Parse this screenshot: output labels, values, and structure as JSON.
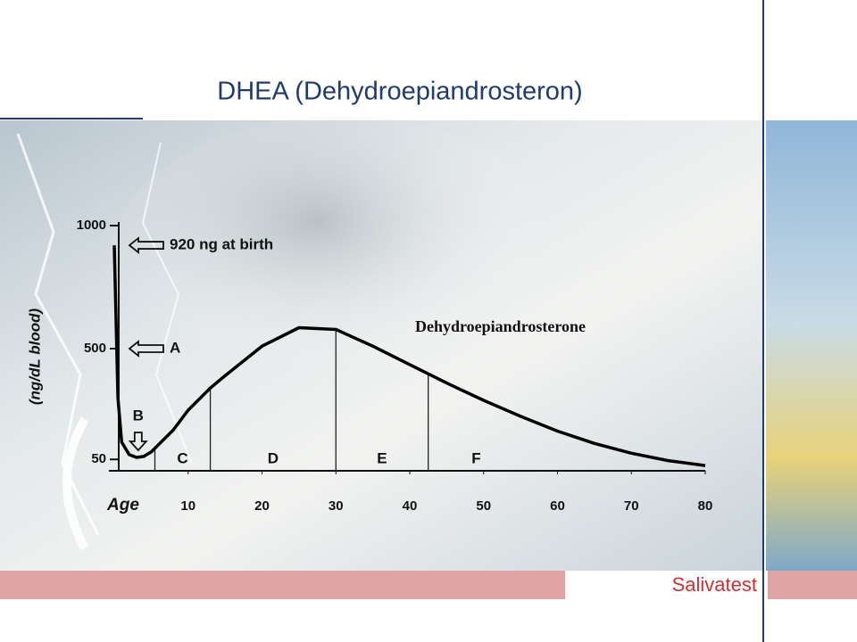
{
  "title": "DHEA (Dehydroepiandrosteron)",
  "footer": "Salivatest",
  "chart_data": {
    "type": "line",
    "ylabel": "(ng/dL blood)",
    "xlabel": "Age",
    "x": [
      0,
      0.5,
      1,
      2,
      3,
      4,
      5,
      8,
      10,
      13,
      15,
      20,
      25,
      30,
      35,
      40,
      45,
      50,
      55,
      60,
      65,
      70,
      75,
      80
    ],
    "series": [
      {
        "name": "Dehydroepiandrosterone",
        "color": "#000000",
        "values": [
          920,
          300,
          120,
          70,
          58,
          62,
          80,
          170,
          250,
          340,
          390,
          510,
          585,
          578,
          510,
          435,
          360,
          290,
          225,
          165,
          115,
          75,
          45,
          25
        ]
      }
    ],
    "xlim": [
      0,
      80
    ],
    "ylim": [
      0,
      1000
    ],
    "xticks": [
      10,
      20,
      30,
      40,
      50,
      60,
      70,
      80
    ],
    "yticks": [
      50,
      500,
      1000
    ],
    "annotations": [
      {
        "text": "920 ng at birth",
        "x": 0,
        "y": 920
      },
      {
        "text": "A",
        "x": 0,
        "y": 500
      },
      {
        "text": "B",
        "x": 3,
        "y": 58
      }
    ],
    "dividers": [
      5.5,
      13,
      30,
      42.5
    ],
    "region_labels": [
      "C",
      "D",
      "E",
      "F"
    ]
  }
}
